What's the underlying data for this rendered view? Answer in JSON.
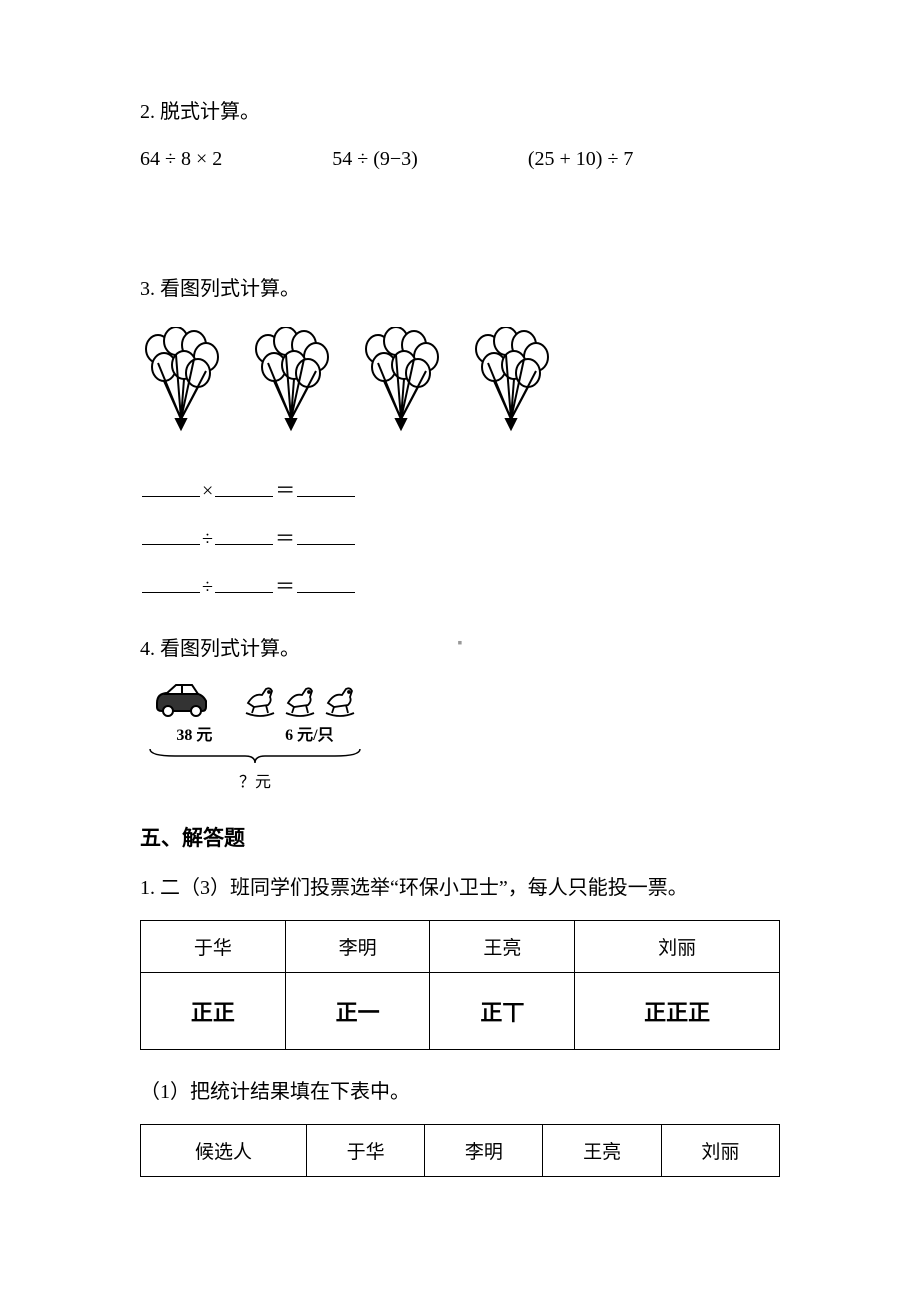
{
  "q2": {
    "label": "2. 脱式计算。",
    "expr1": "64 ÷ 8 × 2",
    "expr2": "54 ÷ (9−3)",
    "expr3": "(25 + 10) ÷ 7"
  },
  "q3": {
    "label": "3. 看图列式计算。",
    "balloon_groups": 4,
    "balloons_per_group": 7,
    "balloon_stroke": "#000000",
    "balloon_fill": "#ffffff",
    "ops": {
      "mult": "×",
      "div": "÷",
      "eq": "＝"
    }
  },
  "q4": {
    "label": "4. 看图列式计算。",
    "car_price": "38 元",
    "horse_price": "6 元/只",
    "horse_count": 3,
    "question": "？元",
    "stroke": "#000000"
  },
  "section5": {
    "title": "五、解答题",
    "q1_label": "1. 二（3）班同学们投票选举“环保小卫士”，每人只能投一票。",
    "tally_table": {
      "headers": [
        "于华",
        "李明",
        "王亮",
        "刘丽"
      ],
      "tallies": [
        "正正",
        "正一",
        "正丅",
        "正正正"
      ]
    },
    "sub1_label": "（1）把统计结果填在下表中。",
    "result_table": {
      "row_label": "候选人",
      "cols": [
        "于华",
        "李明",
        "王亮",
        "刘丽"
      ]
    }
  },
  "style": {
    "text_color": "#000000",
    "bg_color": "#ffffff",
    "font_size_body": 20,
    "font_size_title": 21,
    "table_border": "#000000"
  }
}
